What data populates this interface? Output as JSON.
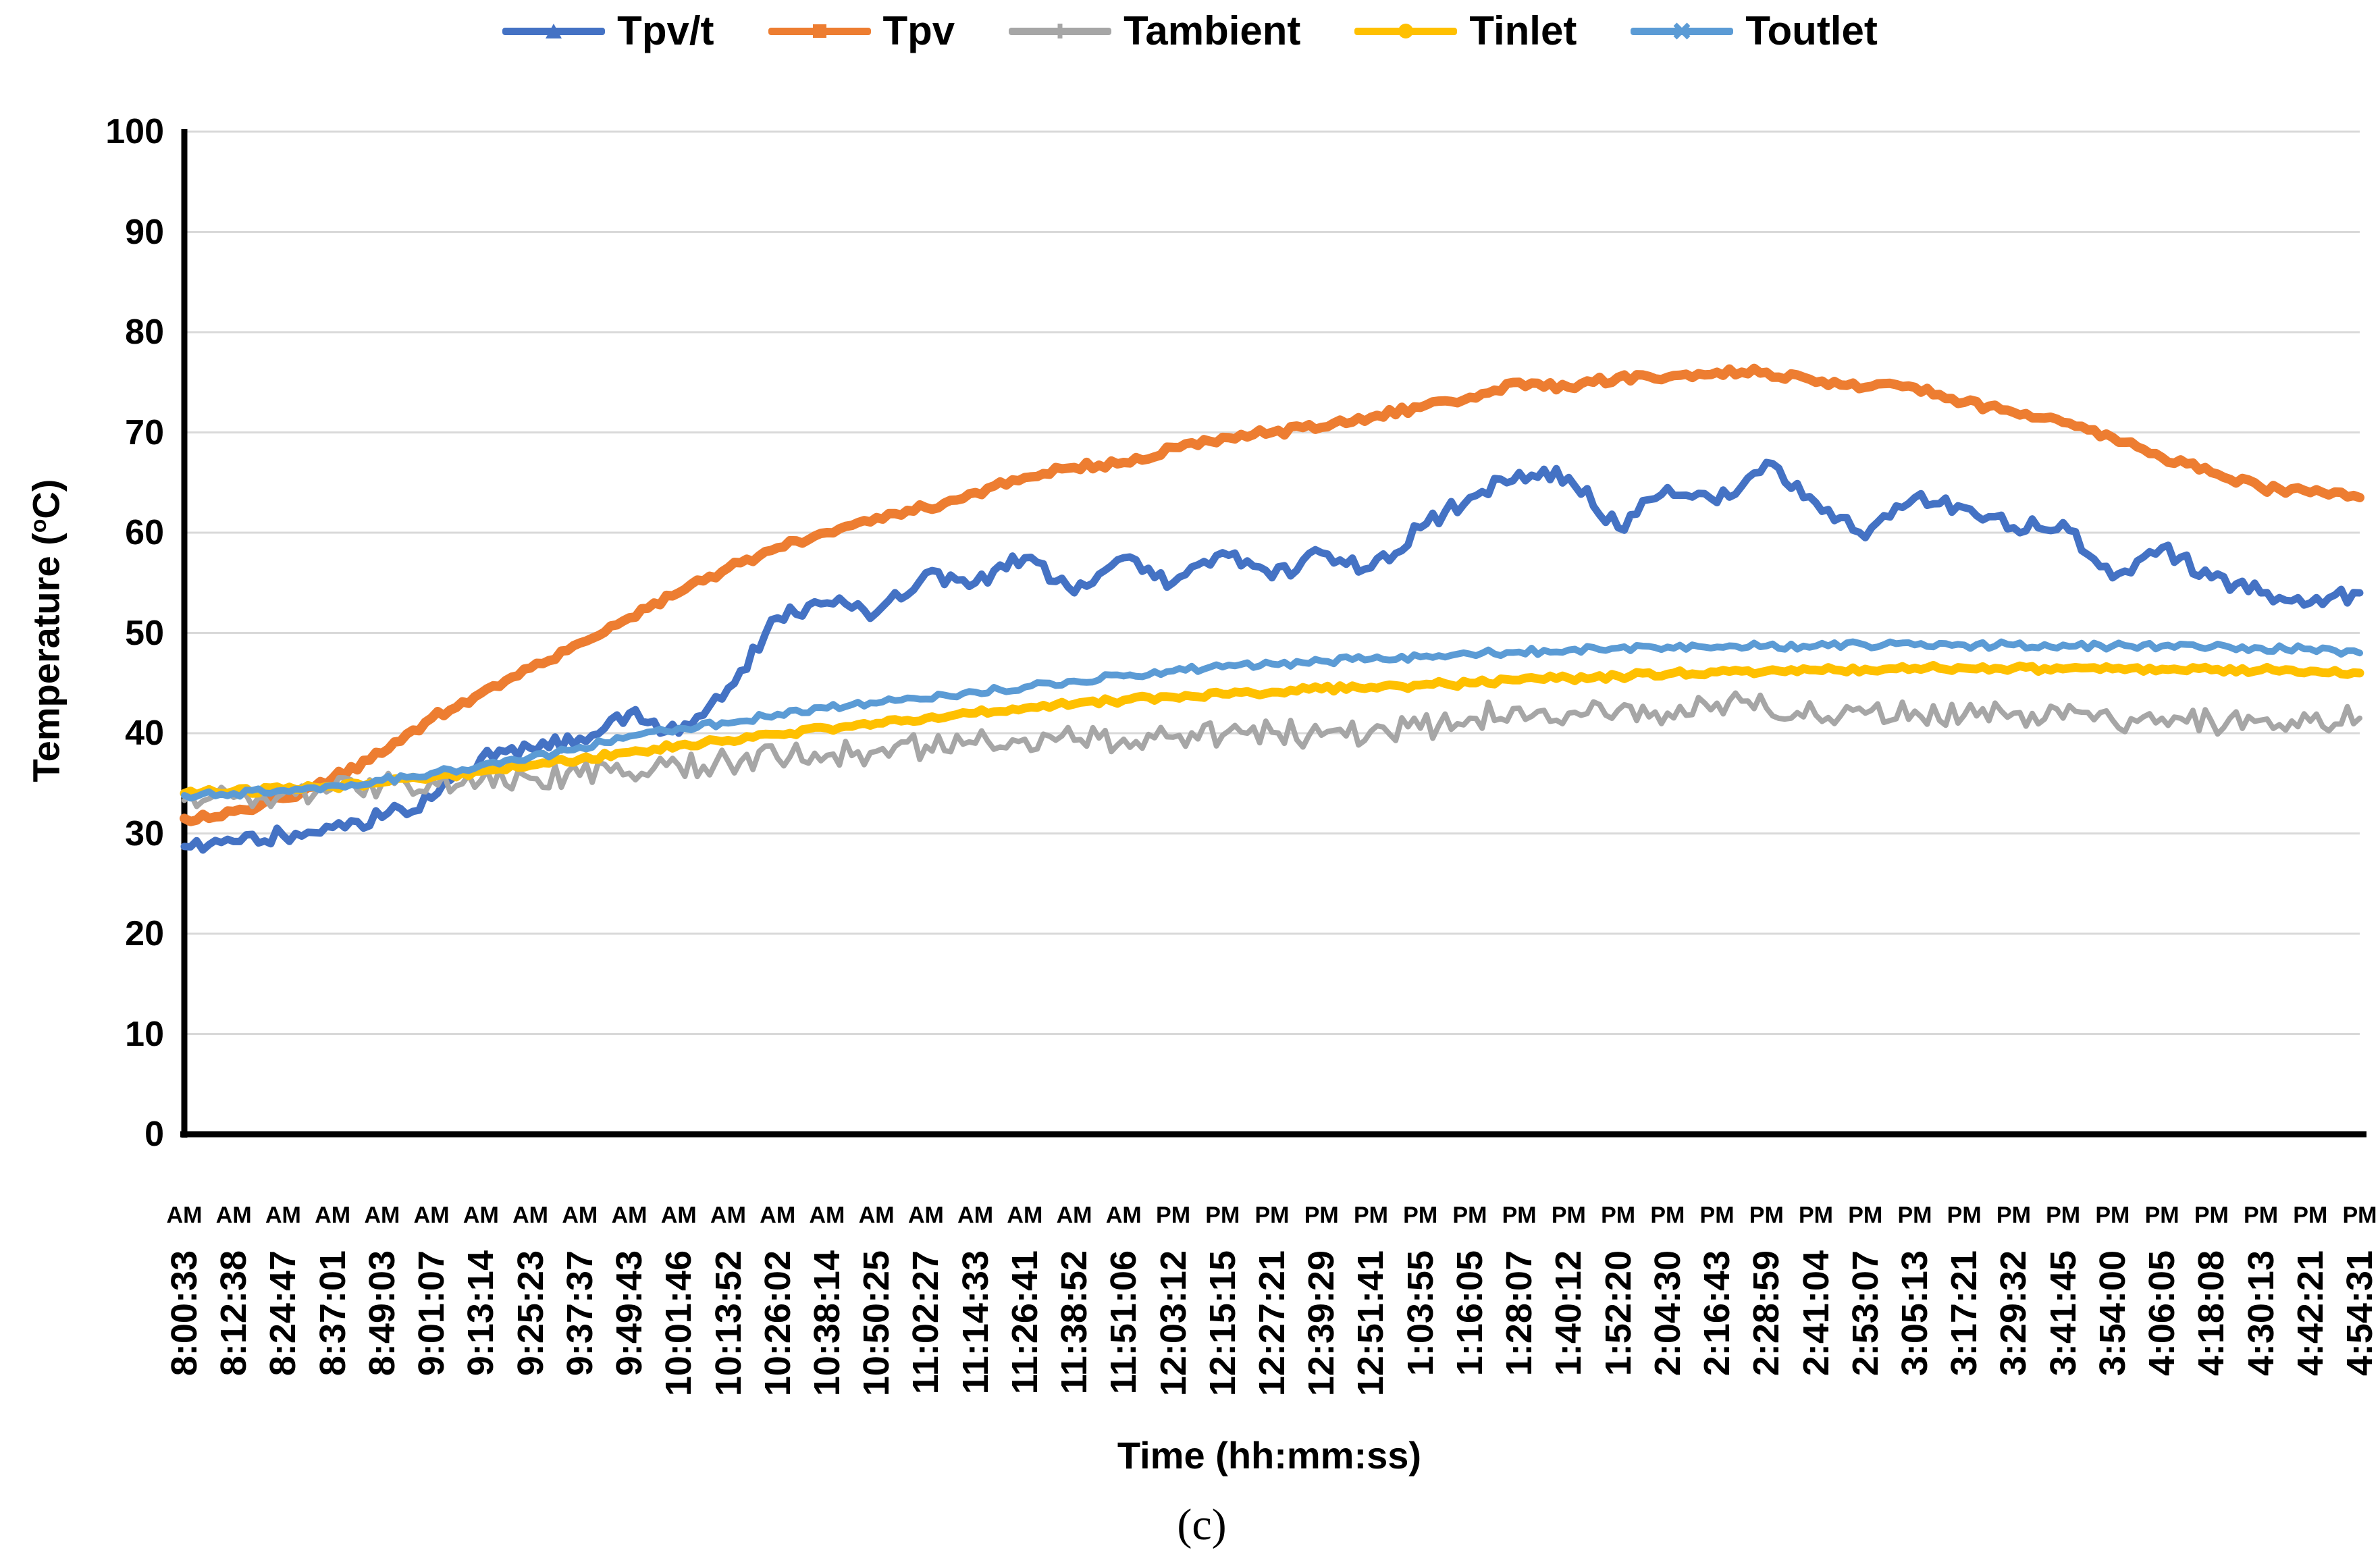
{
  "figure": {
    "caption": "(c)"
  },
  "chart_data": {
    "type": "line",
    "title": "",
    "xlabel": "Time (hh:mm:ss)",
    "ylabel_prefix": "Temperature (",
    "ylabel_sup": "o",
    "ylabel_suffix": "C)",
    "ylim": [
      0,
      100
    ],
    "yticks": [
      0,
      10,
      20,
      30,
      40,
      50,
      60,
      70,
      80,
      90,
      100
    ],
    "grid": "horizontal",
    "gridline_color": "#D9D9D9",
    "axis_color": "#000000",
    "legend_position": "top",
    "x_times": [
      "8:00:33",
      "8:12:38",
      "8:24:47",
      "8:37:01",
      "8:49:03",
      "9:01:07",
      "9:13:14",
      "9:25:23",
      "9:37:37",
      "9:49:43",
      "10:01:46",
      "10:13:52",
      "10:26:02",
      "10:38:14",
      "10:50:25",
      "11:02:27",
      "11:14:33",
      "11:26:41",
      "11:38:52",
      "11:51:06",
      "12:03:12",
      "12:15:15",
      "12:27:21",
      "12:39:29",
      "12:51:41",
      "1:03:55",
      "1:16:05",
      "1:28:07",
      "1:40:12",
      "1:52:20",
      "2:04:30",
      "2:16:43",
      "2:28:59",
      "2:41:04",
      "2:53:07",
      "3:05:13",
      "3:17:21",
      "3:29:32",
      "3:41:45",
      "3:54:00",
      "4:06:05",
      "4:18:08",
      "4:30:13",
      "4:42:21",
      "4:54:31"
    ],
    "x_meridiem": [
      "AM",
      "AM",
      "AM",
      "AM",
      "AM",
      "AM",
      "AM",
      "AM",
      "AM",
      "AM",
      "AM",
      "AM",
      "AM",
      "AM",
      "AM",
      "AM",
      "AM",
      "AM",
      "AM",
      "AM",
      "PM",
      "PM",
      "PM",
      "PM",
      "PM",
      "PM",
      "PM",
      "PM",
      "PM",
      "PM",
      "PM",
      "PM",
      "PM",
      "PM",
      "PM",
      "PM",
      "PM",
      "PM",
      "PM",
      "PM",
      "PM",
      "PM",
      "PM",
      "PM",
      "PM"
    ],
    "series": [
      {
        "name": "Tpv/t",
        "color": "#4472C4",
        "marker": "triangle",
        "line_width": 11,
        "noise": 0.8,
        "values": [
          28.7,
          29.2,
          29.8,
          30.6,
          31.6,
          33.5,
          37.5,
          38.5,
          39.5,
          42.0,
          40.0,
          44.5,
          51.5,
          53.0,
          52.0,
          56.0,
          55.0,
          57.5,
          54.0,
          57.5,
          55.0,
          58.0,
          55.5,
          58.0,
          56.5,
          60.5,
          63.5,
          66.0,
          65.5,
          60.5,
          64.5,
          63.0,
          67.0,
          63.0,
          59.5,
          63.5,
          62.5,
          60.5,
          61.0,
          55.5,
          58.5,
          55.5,
          54.0,
          53.0,
          54.0
        ]
      },
      {
        "name": "Tpv",
        "color": "#ED7D31",
        "marker": "square",
        "line_width": 14,
        "noise": 0.4,
        "values": [
          31.5,
          32.2,
          33.5,
          35.5,
          38.0,
          41.5,
          44.0,
          46.5,
          49.0,
          51.5,
          54.0,
          56.5,
          58.5,
          60.0,
          61.5,
          62.5,
          64.0,
          65.5,
          66.5,
          67.0,
          68.5,
          69.5,
          70.0,
          70.5,
          71.5,
          72.5,
          73.5,
          75.0,
          74.5,
          75.5,
          75.5,
          76.0,
          76.0,
          75.0,
          74.5,
          74.5,
          73.0,
          72.0,
          71.0,
          69.5,
          67.5,
          66.0,
          64.5,
          64.0,
          63.5
        ]
      },
      {
        "name": "Tambient",
        "color": "#A6A6A6",
        "marker": "plus",
        "line_width": 8,
        "noise": 1.3,
        "values": [
          33.3,
          33.6,
          34.0,
          34.5,
          35.0,
          35.3,
          35.3,
          35.5,
          35.8,
          36.0,
          36.8,
          37.2,
          37.5,
          37.8,
          38.2,
          38.7,
          39.0,
          39.4,
          39.3,
          39.4,
          39.6,
          39.8,
          40.1,
          39.8,
          40.2,
          40.5,
          41.5,
          42.5,
          42.0,
          42.3,
          42.0,
          43.0,
          42.5,
          41.8,
          42.0,
          42.2,
          41.8,
          42.0,
          41.5,
          41.3,
          41.5,
          41.2,
          41.3,
          41.2,
          41.5
        ]
      },
      {
        "name": "Tinlet",
        "color": "#FFC000",
        "marker": "circle",
        "line_width": 13,
        "noise": 0.3,
        "values": [
          34.0,
          34.2,
          34.4,
          34.7,
          35.1,
          35.6,
          36.2,
          36.8,
          37.4,
          38.1,
          38.8,
          39.3,
          39.9,
          40.5,
          41.0,
          41.5,
          42.0,
          42.5,
          42.9,
          43.3,
          43.6,
          43.9,
          44.1,
          44.4,
          44.6,
          44.8,
          45.0,
          45.3,
          45.5,
          45.7,
          45.9,
          46.1,
          46.2,
          46.3,
          46.4,
          46.5,
          46.5,
          46.5,
          46.4,
          46.4,
          46.4,
          46.3,
          46.3,
          46.2,
          46.0
        ]
      },
      {
        "name": "Toutlet",
        "color": "#5B9BD5",
        "marker": "x",
        "line_width": 10,
        "noise": 0.35,
        "values": [
          33.8,
          34.0,
          34.3,
          34.8,
          35.3,
          36.0,
          36.8,
          37.6,
          38.6,
          39.7,
          40.5,
          41.0,
          41.9,
          42.5,
          43.0,
          43.4,
          44.1,
          44.6,
          45.2,
          45.7,
          46.2,
          46.6,
          46.9,
          47.2,
          47.4,
          47.6,
          47.9,
          48.1,
          48.3,
          48.5,
          48.6,
          48.6,
          48.7,
          48.7,
          48.8,
          48.8,
          48.8,
          48.8,
          48.8,
          48.7,
          48.7,
          48.6,
          48.5,
          48.4,
          48.0
        ]
      }
    ]
  }
}
